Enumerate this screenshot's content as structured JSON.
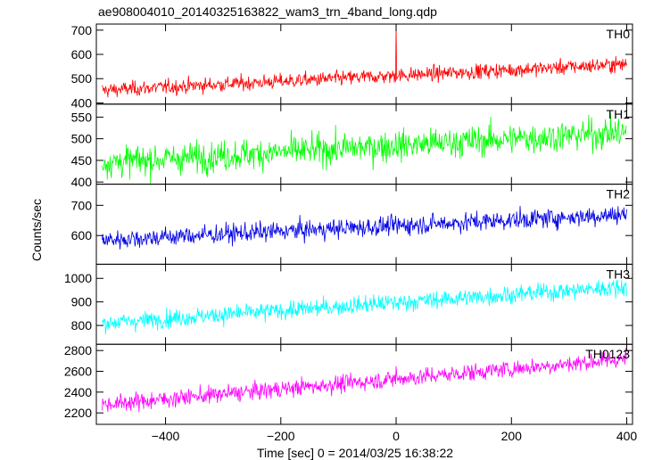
{
  "title": "ae908004010_20140325163822_wam3_trn_4band_long.qdp",
  "xlabel": "Time [sec] 0 = 2014/03/25 16:38:22",
  "ylabel": "Counts/sec",
  "chart_data": {
    "type": "line",
    "title": "ae908004010_20140325163822_wam3_trn_4band_long.qdp",
    "xlabel": "Time [sec] 0 = 2014/03/25 16:38:22",
    "ylabel": "Counts/sec",
    "xlim": [
      -520,
      410
    ],
    "xticks": [
      -400,
      -200,
      0,
      200,
      400
    ],
    "x_start": -510,
    "x_end": 400,
    "x_step": 1,
    "panels": [
      {
        "name": "TH0",
        "color": "#ff0000",
        "ylim": [
          395,
          725
        ],
        "yticks": [
          400,
          500,
          600,
          700
        ],
        "trend_start": 452,
        "trend_end": 560,
        "noise": 26,
        "spike_peak": 725
      },
      {
        "name": "TH1",
        "color": "#00ff00",
        "ylim": [
          395,
          580
        ],
        "yticks": [
          400,
          450,
          500,
          550
        ],
        "trend_start": 445,
        "trend_end": 515,
        "noise": 30,
        "spike_peak": 500
      },
      {
        "name": "TH2",
        "color": "#0000e6",
        "ylim": [
          505,
          770
        ],
        "yticks": [
          600,
          700
        ],
        "trend_start": 585,
        "trend_end": 670,
        "noise": 27,
        "spike_peak": 640
      },
      {
        "name": "TH3",
        "color": "#00ffff",
        "ylim": [
          720,
          1060
        ],
        "yticks": [
          800,
          900,
          1000
        ],
        "trend_start": 810,
        "trend_end": 965,
        "noise": 32,
        "spike_peak": 880
      },
      {
        "name": "TH0123",
        "color": "#ff00ff",
        "ylim": [
          2090,
          2860
        ],
        "yticks": [
          2200,
          2400,
          2600,
          2800
        ],
        "trend_start": 2280,
        "trend_end": 2720,
        "noise": 70,
        "spike_peak": 2650
      }
    ]
  }
}
